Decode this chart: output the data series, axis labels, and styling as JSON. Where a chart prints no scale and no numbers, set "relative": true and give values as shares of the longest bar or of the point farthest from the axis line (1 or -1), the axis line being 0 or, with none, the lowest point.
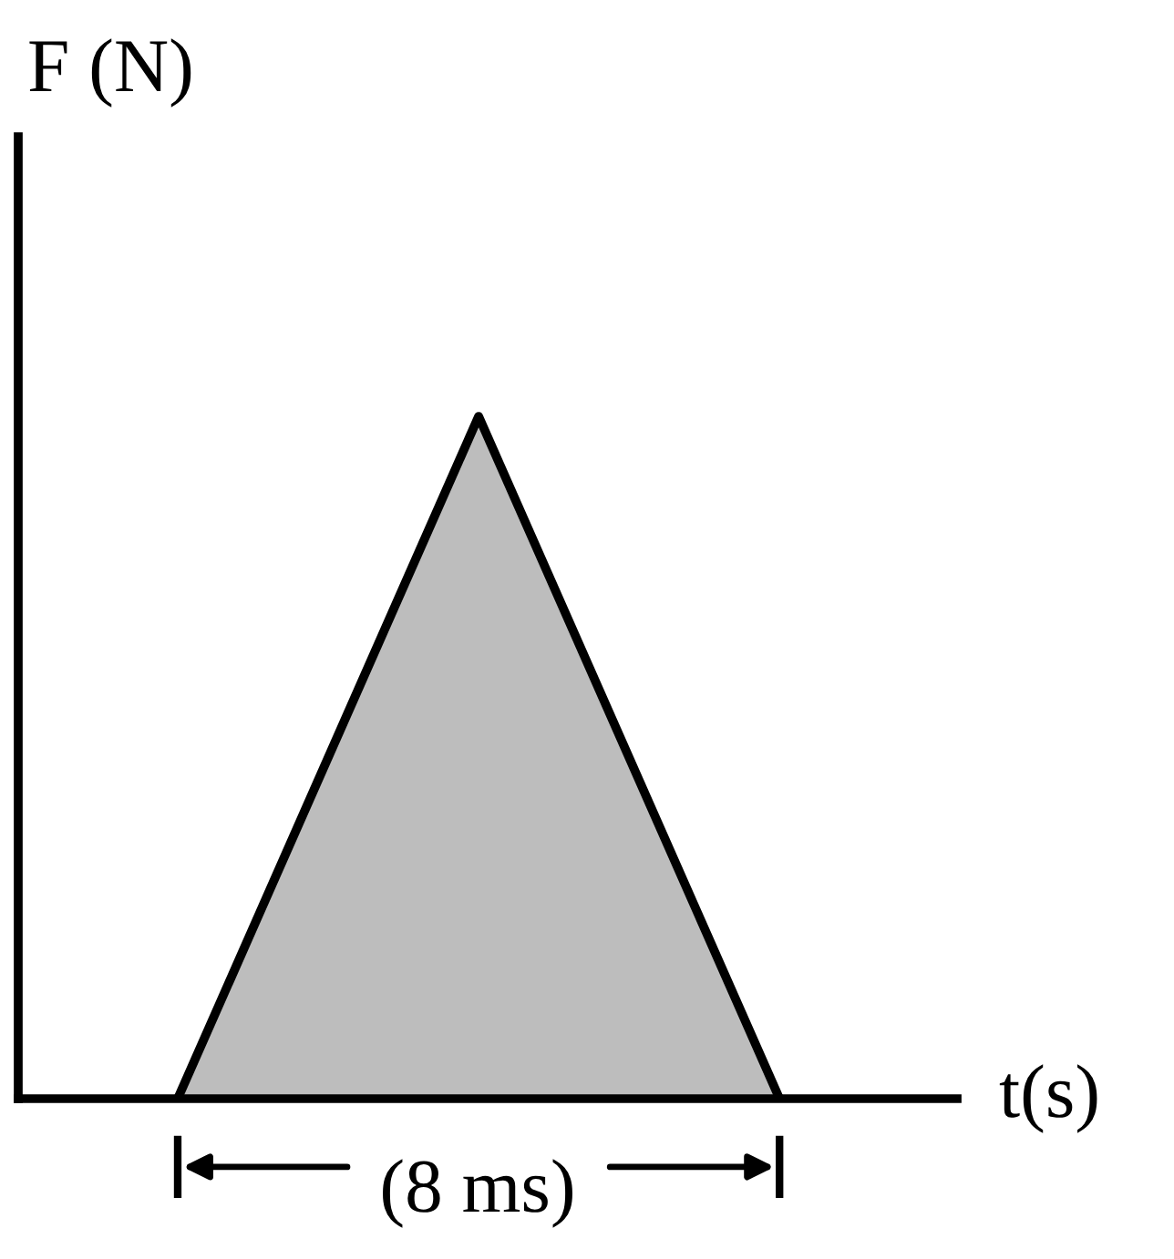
{
  "chart_data": {
    "type": "area",
    "relative": true,
    "categories": [
      null,
      null,
      null
    ],
    "series": [
      {
        "color": "#bdbdbd",
        "values": [
          0,
          1,
          0
        ]
      }
    ],
    "xlabel": "t(s)",
    "ylabel": "F (N)",
    "annotations": [
      "(8 ms)"
    ],
    "grid": false,
    "legend": false
  }
}
